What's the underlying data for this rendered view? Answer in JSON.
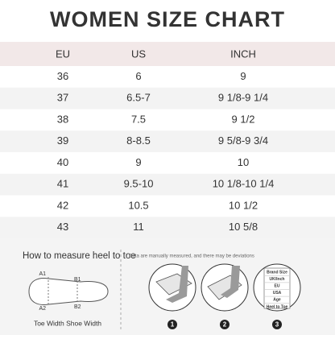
{
  "header": {
    "title": "WOMEN SIZE CHART"
  },
  "table": {
    "columns": [
      "EU",
      "US",
      "INCH"
    ],
    "rows": [
      [
        "36",
        "6",
        "9"
      ],
      [
        "37",
        "6.5-7",
        "9 1/8-9 1/4"
      ],
      [
        "38",
        "7.5",
        "9 1/2"
      ],
      [
        "39",
        "8-8.5",
        "9 5/8-9 3/4"
      ],
      [
        "40",
        "9",
        "10"
      ],
      [
        "41",
        "9.5-10",
        "10 1/8-10 1/4"
      ],
      [
        "42",
        "10.5",
        "10 1/2"
      ],
      [
        "43",
        "11",
        "10 5/8"
      ]
    ]
  },
  "guide": {
    "title": "How to measure heel to toe",
    "foot_labels": [
      "A1",
      "B1",
      "A2",
      "B2"
    ],
    "caption": "Toe Width Shoe Width",
    "note": "* Data are manually measured, and there may be deviations",
    "steps": [
      "1",
      "2",
      "3"
    ],
    "label_box": [
      "Brand Size",
      "UK/Inch",
      "EU",
      "USA",
      "Age",
      "Heel to Toe"
    ]
  }
}
